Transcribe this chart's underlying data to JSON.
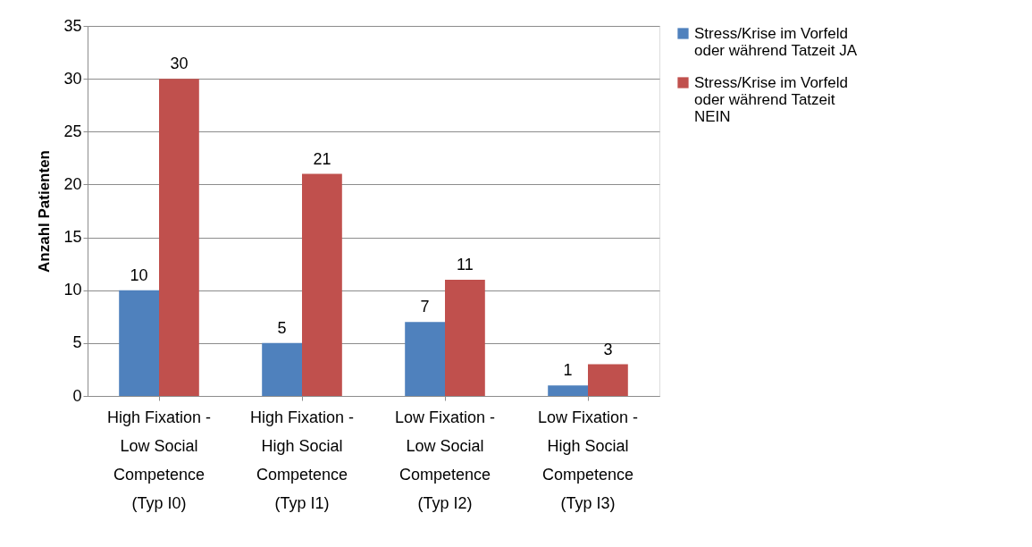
{
  "chart_data": {
    "type": "bar",
    "ylabel": "Anzahl Patienten",
    "categories": [
      "High Fixation - Low Social Competence (Typ I0)",
      "High Fixation - High Social Competence (Typ I1)",
      "Low Fixation - Low Social Competence (Typ I2)",
      "Low Fixation - High Social Competence (Typ I3)"
    ],
    "series": [
      {
        "name": "Stress/Krise im Vorfeld oder während Tatzeit JA",
        "color": "#4f81bd",
        "values": [
          10,
          5,
          7,
          1
        ]
      },
      {
        "name": "Stress/Krise im Vorfeld oder während Tatzeit NEIN",
        "color": "#c0504d",
        "values": [
          30,
          21,
          11,
          3
        ]
      }
    ],
    "ylim": [
      0,
      35
    ],
    "yticks": [
      0,
      5,
      10,
      15,
      20,
      25,
      30,
      35
    ],
    "grid": "y",
    "legend": "right",
    "data_labels": true
  }
}
